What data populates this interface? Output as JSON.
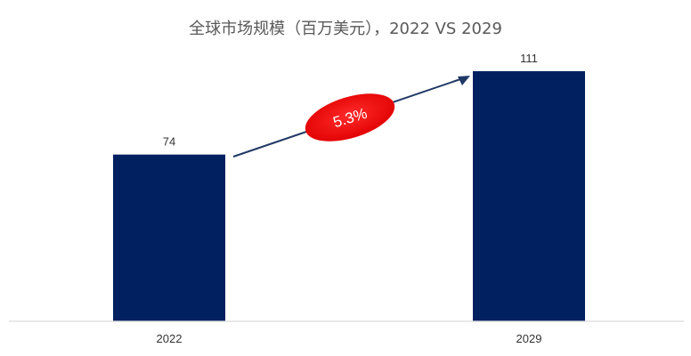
{
  "chart_data": {
    "type": "bar",
    "title": "全球市场规模（百万美元），2022 VS 2029",
    "categories": [
      "2022",
      "2029"
    ],
    "values": [
      74,
      111
    ],
    "ylim": [
      0,
      111
    ],
    "grid": false,
    "annotation": {
      "text": "5.3%"
    },
    "colors": {
      "bar": "#002060",
      "arrow": "#1F3864",
      "badge": "#FF0000",
      "baseline": "#D9D9D9",
      "title": "#595959"
    }
  }
}
